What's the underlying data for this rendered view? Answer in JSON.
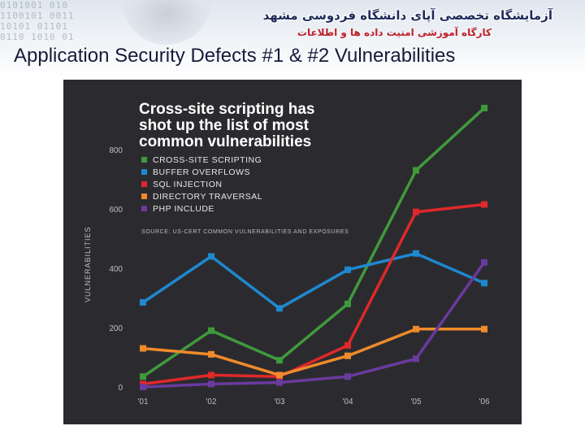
{
  "header": {
    "persian_line_1": "آزمایشگاه تخصصی آپای دانشگاه فردوسی مشهد",
    "persian_line_2": "کارگاه آموزشی امنیت داده ها و اطلاعات",
    "slide_title": "Application Security Defects #1 & #2 Vulnerabilities"
  },
  "chart_data": {
    "type": "line",
    "title_lines": [
      "Cross-site scripting has",
      "shot up the list of most",
      "common vulnerabilities"
    ],
    "source": "SOURCE: US-CERT COMMON VULNERABILITIES AND EXPOSURES",
    "ylabel": "VULNERABILITIES",
    "xlabel": "",
    "x": [
      "'01",
      "'02",
      "'03",
      "'04",
      "'05",
      "'06"
    ],
    "yticks": [
      0,
      200,
      400,
      600,
      800
    ],
    "ylim": [
      0,
      900
    ],
    "grid": false,
    "legend_position": "top-left",
    "series": [
      {
        "name": "CROSS-SITE SCRIPTING",
        "color": "#3f9a3c",
        "values": [
          35,
          190,
          90,
          280,
          730,
          940
        ]
      },
      {
        "name": "BUFFER OVERFLOWS",
        "color": "#1e88d0",
        "values": [
          285,
          440,
          265,
          395,
          450,
          350
        ]
      },
      {
        "name": "SQL INJECTION",
        "color": "#e0282a",
        "values": [
          10,
          40,
          35,
          140,
          590,
          615
        ]
      },
      {
        "name": "DIRECTORY TRAVERSAL",
        "color": "#f08a2a",
        "values": [
          130,
          110,
          40,
          105,
          195,
          195
        ]
      },
      {
        "name": "PHP INCLUDE",
        "color": "#6a3a9e",
        "values": [
          0,
          10,
          15,
          35,
          95,
          420
        ]
      }
    ]
  }
}
